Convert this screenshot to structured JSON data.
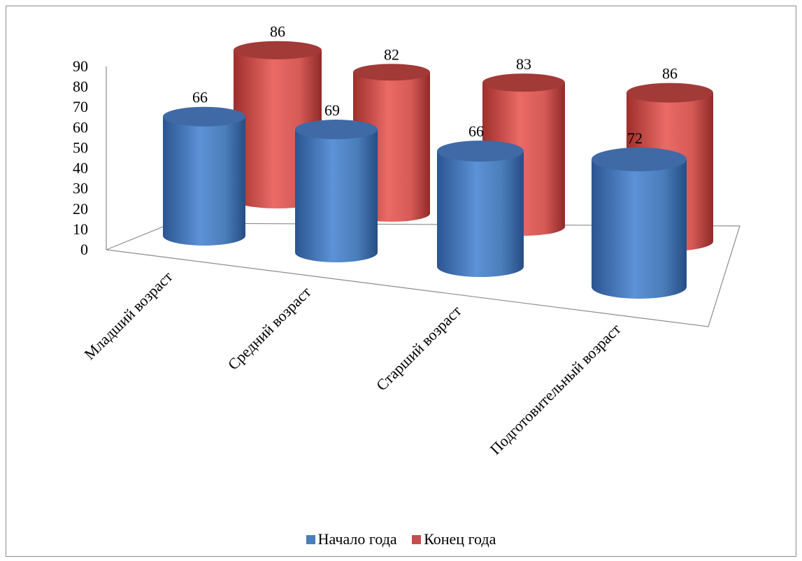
{
  "chart_data": {
    "type": "bar",
    "subtype": "3d-cylinder-clustered",
    "title": "",
    "xlabel": "",
    "ylabel": "",
    "ylim": [
      0,
      90
    ],
    "yticks": [
      "0",
      "10",
      "20",
      "30",
      "40",
      "50",
      "60",
      "70",
      "80",
      "90"
    ],
    "categories": [
      "Младший возраст",
      "Средний возраст",
      "Старший возраст",
      "Подготовительный  возраст"
    ],
    "series": [
      {
        "name": "Начало года",
        "values": [
          66,
          69,
          66,
          72
        ],
        "color": "#4a7ebb"
      },
      {
        "name": "Конец года",
        "values": [
          86,
          82,
          83,
          86
        ],
        "color": "#c0504d"
      }
    ],
    "data_labels": true,
    "grid": false,
    "legend_position": "bottom"
  }
}
